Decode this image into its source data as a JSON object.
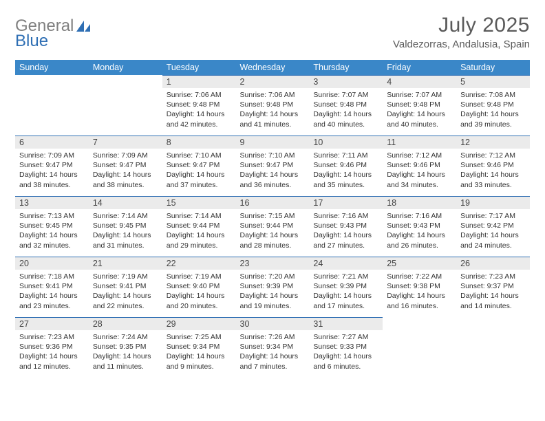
{
  "logo": {
    "word1": "General",
    "word2": "Blue"
  },
  "title": {
    "month": "July 2025",
    "location": "Valdezorras, Andalusia, Spain"
  },
  "weekdays": [
    "Sunday",
    "Monday",
    "Tuesday",
    "Wednesday",
    "Thursday",
    "Friday",
    "Saturday"
  ],
  "colors": {
    "header_bg": "#3a87c8",
    "header_fg": "#ffffff",
    "daynum_bg": "#ebebeb",
    "daynum_border": "#2f6fb4",
    "text": "#333333",
    "logo_gray": "#808080",
    "logo_blue": "#2f6fb4",
    "title_gray": "#5a5a5a"
  },
  "grid": [
    [
      null,
      null,
      {
        "n": "1",
        "sr": "7:06 AM",
        "ss": "9:48 PM",
        "dl": "14 hours and 42 minutes."
      },
      {
        "n": "2",
        "sr": "7:06 AM",
        "ss": "9:48 PM",
        "dl": "14 hours and 41 minutes."
      },
      {
        "n": "3",
        "sr": "7:07 AM",
        "ss": "9:48 PM",
        "dl": "14 hours and 40 minutes."
      },
      {
        "n": "4",
        "sr": "7:07 AM",
        "ss": "9:48 PM",
        "dl": "14 hours and 40 minutes."
      },
      {
        "n": "5",
        "sr": "7:08 AM",
        "ss": "9:48 PM",
        "dl": "14 hours and 39 minutes."
      }
    ],
    [
      {
        "n": "6",
        "sr": "7:09 AM",
        "ss": "9:47 PM",
        "dl": "14 hours and 38 minutes."
      },
      {
        "n": "7",
        "sr": "7:09 AM",
        "ss": "9:47 PM",
        "dl": "14 hours and 38 minutes."
      },
      {
        "n": "8",
        "sr": "7:10 AM",
        "ss": "9:47 PM",
        "dl": "14 hours and 37 minutes."
      },
      {
        "n": "9",
        "sr": "7:10 AM",
        "ss": "9:47 PM",
        "dl": "14 hours and 36 minutes."
      },
      {
        "n": "10",
        "sr": "7:11 AM",
        "ss": "9:46 PM",
        "dl": "14 hours and 35 minutes."
      },
      {
        "n": "11",
        "sr": "7:12 AM",
        "ss": "9:46 PM",
        "dl": "14 hours and 34 minutes."
      },
      {
        "n": "12",
        "sr": "7:12 AM",
        "ss": "9:46 PM",
        "dl": "14 hours and 33 minutes."
      }
    ],
    [
      {
        "n": "13",
        "sr": "7:13 AM",
        "ss": "9:45 PM",
        "dl": "14 hours and 32 minutes."
      },
      {
        "n": "14",
        "sr": "7:14 AM",
        "ss": "9:45 PM",
        "dl": "14 hours and 31 minutes."
      },
      {
        "n": "15",
        "sr": "7:14 AM",
        "ss": "9:44 PM",
        "dl": "14 hours and 29 minutes."
      },
      {
        "n": "16",
        "sr": "7:15 AM",
        "ss": "9:44 PM",
        "dl": "14 hours and 28 minutes."
      },
      {
        "n": "17",
        "sr": "7:16 AM",
        "ss": "9:43 PM",
        "dl": "14 hours and 27 minutes."
      },
      {
        "n": "18",
        "sr": "7:16 AM",
        "ss": "9:43 PM",
        "dl": "14 hours and 26 minutes."
      },
      {
        "n": "19",
        "sr": "7:17 AM",
        "ss": "9:42 PM",
        "dl": "14 hours and 24 minutes."
      }
    ],
    [
      {
        "n": "20",
        "sr": "7:18 AM",
        "ss": "9:41 PM",
        "dl": "14 hours and 23 minutes."
      },
      {
        "n": "21",
        "sr": "7:19 AM",
        "ss": "9:41 PM",
        "dl": "14 hours and 22 minutes."
      },
      {
        "n": "22",
        "sr": "7:19 AM",
        "ss": "9:40 PM",
        "dl": "14 hours and 20 minutes."
      },
      {
        "n": "23",
        "sr": "7:20 AM",
        "ss": "9:39 PM",
        "dl": "14 hours and 19 minutes."
      },
      {
        "n": "24",
        "sr": "7:21 AM",
        "ss": "9:39 PM",
        "dl": "14 hours and 17 minutes."
      },
      {
        "n": "25",
        "sr": "7:22 AM",
        "ss": "9:38 PM",
        "dl": "14 hours and 16 minutes."
      },
      {
        "n": "26",
        "sr": "7:23 AM",
        "ss": "9:37 PM",
        "dl": "14 hours and 14 minutes."
      }
    ],
    [
      {
        "n": "27",
        "sr": "7:23 AM",
        "ss": "9:36 PM",
        "dl": "14 hours and 12 minutes."
      },
      {
        "n": "28",
        "sr": "7:24 AM",
        "ss": "9:35 PM",
        "dl": "14 hours and 11 minutes."
      },
      {
        "n": "29",
        "sr": "7:25 AM",
        "ss": "9:34 PM",
        "dl": "14 hours and 9 minutes."
      },
      {
        "n": "30",
        "sr": "7:26 AM",
        "ss": "9:34 PM",
        "dl": "14 hours and 7 minutes."
      },
      {
        "n": "31",
        "sr": "7:27 AM",
        "ss": "9:33 PM",
        "dl": "14 hours and 6 minutes."
      },
      null,
      null
    ]
  ],
  "labels": {
    "sunrise": "Sunrise: ",
    "sunset": "Sunset: ",
    "daylight": "Daylight: "
  }
}
